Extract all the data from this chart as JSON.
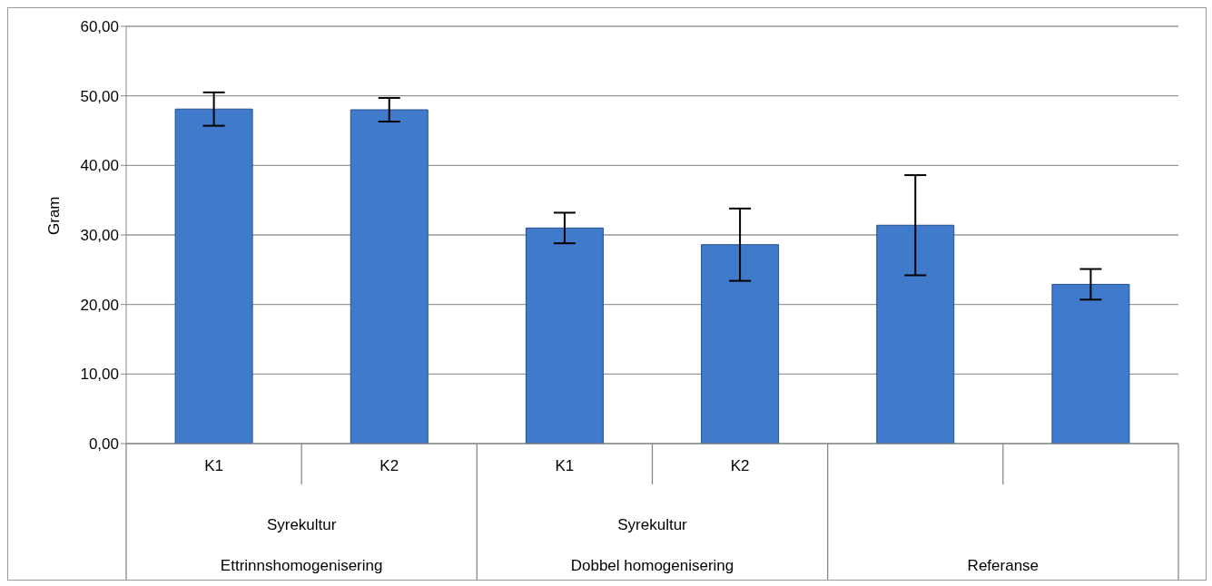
{
  "chart_data": {
    "type": "bar",
    "ylabel": "Gram",
    "categories": [
      "K1",
      "K2",
      "K1",
      "K2",
      null,
      null
    ],
    "values": [
      48.1,
      48.0,
      31.0,
      28.6,
      31.4,
      22.9
    ],
    "errors": [
      2.4,
      1.7,
      2.2,
      5.2,
      7.2,
      2.2
    ],
    "color": "#3f7acb",
    "ylim": [
      0,
      60
    ],
    "yticks": [
      {
        "value": 0,
        "label": "0,00"
      },
      {
        "value": 10,
        "label": "10,00"
      },
      {
        "value": 20,
        "label": "20,00"
      },
      {
        "value": 30,
        "label": "30,00"
      },
      {
        "value": 40,
        "label": "40,00"
      },
      {
        "value": 50,
        "label": "50,00"
      },
      {
        "value": 60,
        "label": "60,00"
      }
    ],
    "grid": "y",
    "annotations": [
      "Syrekultur",
      "Ettrinnshomogenisering",
      "Syrekultur",
      "Dobbel homogenisering",
      "Referanse"
    ]
  }
}
